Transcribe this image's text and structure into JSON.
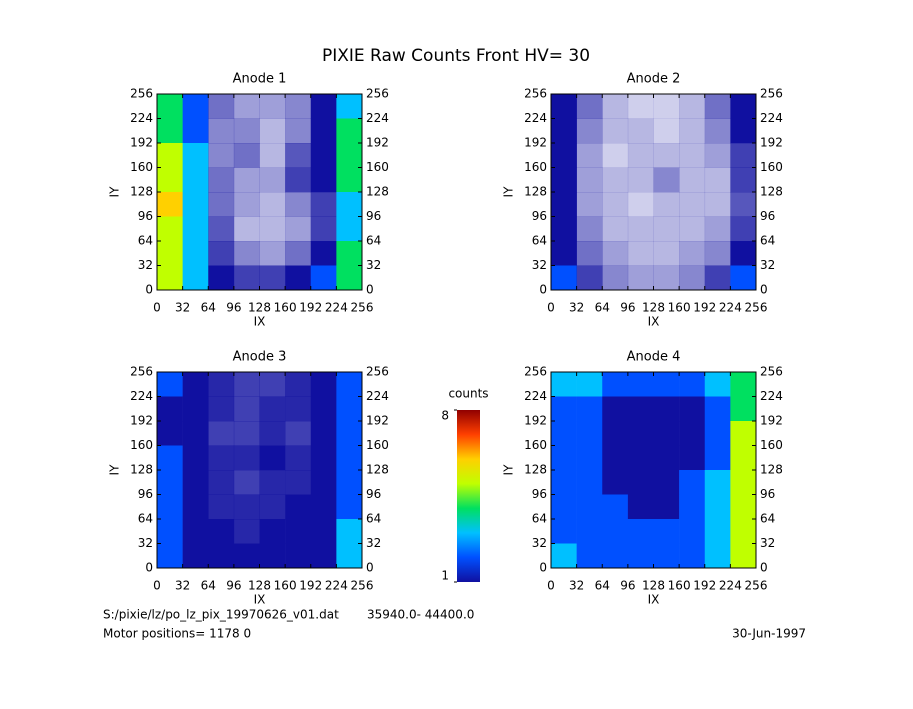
{
  "title": "PIXIE Raw Counts Front HV= 30",
  "chart_data": [
    {
      "type": "heatmap",
      "title": "Anode 1",
      "xlabel": "IX",
      "ylabel": "IY",
      "xlim": [
        0,
        256
      ],
      "ylim": [
        0,
        256
      ],
      "xticks": [
        0,
        32,
        64,
        96,
        128,
        160,
        192,
        224,
        256
      ],
      "yticks": [
        0,
        32,
        64,
        96,
        128,
        160,
        192,
        224,
        256
      ],
      "z": [
        [
          4,
          2,
          0.6,
          0.4,
          0.4,
          0.5,
          1,
          3
        ],
        [
          4,
          2,
          0.5,
          0.5,
          0.3,
          0.5,
          1.2,
          3.5
        ],
        [
          5,
          2.5,
          0.5,
          0.6,
          0.3,
          0.7,
          1,
          3.5
        ],
        [
          5,
          2.5,
          0.6,
          0.4,
          0.4,
          0.8,
          1,
          3.5
        ],
        [
          5.5,
          3,
          0.6,
          0.4,
          0.3,
          0.5,
          0.8,
          3
        ],
        [
          5,
          3,
          0.7,
          0.3,
          0.3,
          0.4,
          0.8,
          3
        ],
        [
          5,
          2.5,
          0.8,
          0.5,
          0.4,
          0.6,
          1,
          3.5
        ],
        [
          5,
          3,
          1.2,
          0.8,
          0.8,
          1,
          1.5,
          4
        ]
      ]
    },
    {
      "type": "heatmap",
      "title": "Anode 2",
      "xlabel": "IX",
      "ylabel": "IY",
      "xlim": [
        0,
        256
      ],
      "ylim": [
        0,
        256
      ],
      "xticks": [
        0,
        32,
        64,
        96,
        128,
        160,
        192,
        224,
        256
      ],
      "yticks": [
        0,
        32,
        64,
        96,
        128,
        160,
        192,
        224,
        256
      ],
      "z": [
        [
          1.2,
          0.6,
          0.3,
          0.2,
          0.2,
          0.3,
          0.6,
          1.2
        ],
        [
          1,
          0.5,
          0.3,
          0.3,
          0.2,
          0.3,
          0.5,
          1
        ],
        [
          1,
          0.4,
          0.2,
          0.3,
          0.3,
          0.3,
          0.4,
          0.8
        ],
        [
          1,
          0.4,
          0.3,
          0.3,
          0.5,
          0.3,
          0.3,
          0.8
        ],
        [
          1,
          0.4,
          0.3,
          0.2,
          0.3,
          0.3,
          0.3,
          0.7
        ],
        [
          1,
          0.5,
          0.3,
          0.3,
          0.3,
          0.3,
          0.4,
          0.8
        ],
        [
          1.2,
          0.6,
          0.4,
          0.3,
          0.3,
          0.4,
          0.5,
          1
        ],
        [
          1.5,
          0.8,
          0.5,
          0.4,
          0.4,
          0.5,
          0.8,
          1.5
        ]
      ]
    },
    {
      "type": "heatmap",
      "title": "Anode 3",
      "xlabel": "IX",
      "ylabel": "IY",
      "xlim": [
        0,
        256
      ],
      "ylim": [
        0,
        256
      ],
      "xticks": [
        0,
        32,
        64,
        96,
        128,
        160,
        192,
        224,
        256
      ],
      "yticks": [
        0,
        32,
        64,
        96,
        128,
        160,
        192,
        224,
        256
      ],
      "z": [
        [
          1.5,
          1,
          0.9,
          0.8,
          0.8,
          0.9,
          1,
          1.8
        ],
        [
          1.4,
          1,
          0.9,
          0.8,
          0.9,
          0.9,
          1,
          1.8
        ],
        [
          1.4,
          1,
          0.8,
          0.8,
          0.9,
          0.8,
          1,
          1.8
        ],
        [
          1.5,
          1.1,
          0.9,
          0.9,
          1,
          0.9,
          1,
          2
        ],
        [
          1.5,
          1,
          0.9,
          0.8,
          0.9,
          0.9,
          1.1,
          2
        ],
        [
          1.6,
          1.1,
          0.9,
          0.9,
          0.9,
          1,
          1.2,
          2.2
        ],
        [
          1.6,
          1.1,
          1,
          0.9,
          1,
          1,
          1.2,
          2.5
        ],
        [
          1.8,
          1.2,
          1,
          1,
          1,
          1,
          1.3,
          2.8
        ]
      ]
    },
    {
      "type": "heatmap",
      "title": "Anode 4",
      "xlabel": "IX",
      "ylabel": "IY",
      "xlim": [
        0,
        256
      ],
      "ylim": [
        0,
        256
      ],
      "xticks": [
        0,
        32,
        64,
        96,
        128,
        160,
        192,
        224,
        256
      ],
      "yticks": [
        0,
        32,
        64,
        96,
        128,
        160,
        192,
        224,
        256
      ],
      "z": [
        [
          3,
          2.5,
          2,
          2,
          2,
          2,
          2.5,
          4
        ],
        [
          2,
          1.6,
          1.4,
          1.3,
          1.3,
          1.4,
          2,
          4
        ],
        [
          2,
          1.5,
          1.3,
          1.2,
          1.2,
          1.4,
          2.2,
          4.5
        ],
        [
          2,
          1.6,
          1.4,
          1.3,
          1.3,
          1.4,
          2.3,
          4.5
        ],
        [
          2,
          1.6,
          1.4,
          1.3,
          1.3,
          1.5,
          2.5,
          5
        ],
        [
          2.2,
          1.7,
          1.5,
          1.4,
          1.4,
          1.5,
          2.5,
          5
        ],
        [
          2.3,
          1.8,
          1.5,
          1.5,
          1.5,
          1.6,
          2.6,
          5
        ],
        [
          2.5,
          2,
          1.7,
          1.6,
          1.6,
          1.8,
          2.8,
          5
        ]
      ]
    }
  ],
  "colorbar": {
    "label": "counts",
    "lim": [
      1,
      8
    ],
    "ticks": [
      1,
      8
    ],
    "colormap": [
      "#1010a0",
      "#0050ff",
      "#00c0ff",
      "#00e060",
      "#c0ff00",
      "#ffd000",
      "#ff4000",
      "#900000"
    ]
  },
  "footer": {
    "file": "S:/pixie/lz/po_lz_pix_19970626_v01.dat",
    "range": "35940.0- 44400.0",
    "motor": "Motor positions= 1178 0",
    "date": "30-Jun-1997"
  }
}
